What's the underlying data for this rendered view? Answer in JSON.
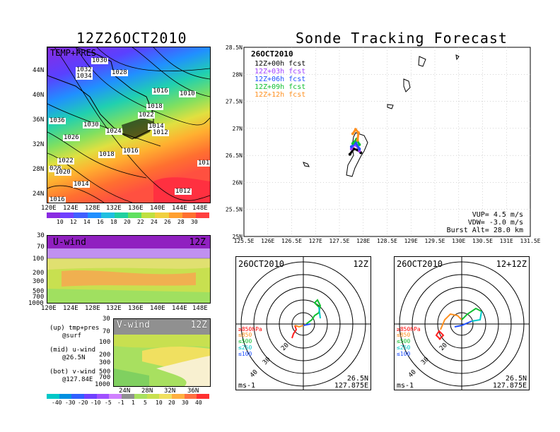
{
  "left": {
    "title": "12Z26OCT2010",
    "map_label": "TEMP+PRES",
    "lat_labels": [
      "44N",
      "40N",
      "36N",
      "32N",
      "28N",
      "24N"
    ],
    "lon_labels": [
      "120E",
      "124E",
      "128E",
      "132E",
      "136E",
      "140E",
      "144E",
      "148E"
    ],
    "isobars": [
      "1030",
      "1032",
      "1034",
      "1028",
      "1016",
      "1010",
      "1018",
      "1022",
      "1036",
      "1030",
      "1024",
      "1014",
      "1012",
      "1026",
      "1018",
      "1016",
      "028",
      "1022",
      "1020",
      "1014",
      "101",
      "1012",
      "1016"
    ],
    "temp_colorbar": [
      "10",
      "12",
      "14",
      "16",
      "18",
      "20",
      "22",
      "24",
      "26",
      "28",
      "30"
    ],
    "uwind": {
      "title": "U-wind",
      "time": "12Z",
      "p_labels": [
        "30",
        "70",
        "100",
        "200",
        "300",
        "500",
        "700",
        "1000"
      ],
      "lon_labels": [
        "120E",
        "124E",
        "128E",
        "132E",
        "136E",
        "140E",
        "144E",
        "148E"
      ]
    },
    "vwind": {
      "title": "V-wind",
      "time": "12Z",
      "p_labels": [
        "30",
        "70",
        "100",
        "200",
        "300",
        "500",
        "700",
        "1000"
      ],
      "lat_labels": [
        "24N",
        "28N",
        "32N",
        "36N"
      ]
    },
    "notes": [
      {
        "a": "(up) tmp+pres",
        "b": "@surf"
      },
      {
        "a": "(mid) u-wind",
        "b": "@26.5N"
      },
      {
        "a": "(bot) v-wind",
        "b": "@127.84E"
      }
    ],
    "wind_colorbar": [
      "-40",
      "-30",
      "-20",
      "-10",
      "-5",
      "-1",
      "1",
      "5",
      "10",
      "20",
      "30",
      "40"
    ]
  },
  "right": {
    "title": "Sonde Tracking Forecast",
    "date": "26OCT2010",
    "fcst_lines": [
      {
        "text": "12Z+00h  fcst",
        "color": "#000000"
      },
      {
        "text": "12Z+03h  fcst",
        "color": "#a040ff"
      },
      {
        "text": "12Z+06h  fcst",
        "color": "#2050ff"
      },
      {
        "text": "12Z+09h  fcst",
        "color": "#10c030"
      },
      {
        "text": "12Z+12h  fcst",
        "color": "#ff9020"
      }
    ],
    "info": [
      "VUP=  4.5  m/s",
      "VDW= -3.0  m/s",
      "Burst Alt=  28.0  km"
    ]
  },
  "hodo_left": {
    "date": "26OCT2010",
    "time": "12Z",
    "lat": "26.5N",
    "lon": "127.875E",
    "unit": "ms-1",
    "rings": [
      "20",
      "30",
      "40"
    ],
    "levels": [
      "≥850hPa",
      "≤850",
      "≤500",
      "≤250",
      "≤100"
    ]
  },
  "hodo_right": {
    "date": "26OCT2010",
    "time": "12+12Z",
    "lat": "26.5N",
    "lon": "127.875E",
    "unit": "ms-1",
    "rings": [
      "20",
      "30",
      "40"
    ],
    "levels": [
      "≥850hPa",
      "≤850",
      "≤500",
      "≤250",
      "≤100"
    ]
  },
  "chart_data": {
    "type": "line",
    "title": "Sonde Tracking Forecast",
    "x": {
      "label": "",
      "ticks": [
        "125.5E",
        "126E",
        "126.5E",
        "127E",
        "127.5E",
        "128E",
        "128.5E",
        "129E",
        "129.5E",
        "130E",
        "130.5E",
        "131E",
        "131.5E"
      ],
      "range": [
        125.5,
        131.5
      ]
    },
    "y": {
      "label": "",
      "ticks": [
        "25N",
        "25.5N",
        "26N",
        "26.5N",
        "27N",
        "27.5N",
        "28N",
        "28.5N"
      ],
      "range": [
        25,
        28.5
      ]
    },
    "grid": true,
    "series": [
      {
        "name": "12Z+00h fcst",
        "color": "#000000",
        "points": [
          [
            127.72,
            26.52
          ],
          [
            127.8,
            26.62
          ],
          [
            127.88,
            26.6
          ],
          [
            127.95,
            26.55
          ]
        ]
      },
      {
        "name": "12Z+03h fcst",
        "color": "#a040ff",
        "points": [
          [
            127.75,
            26.62
          ],
          [
            127.82,
            26.7
          ],
          [
            127.9,
            26.64
          ],
          [
            127.92,
            26.58
          ]
        ]
      },
      {
        "name": "12Z+06h fcst",
        "color": "#2050ff",
        "points": [
          [
            127.75,
            26.66
          ],
          [
            127.84,
            26.74
          ],
          [
            127.92,
            26.62
          ]
        ]
      },
      {
        "name": "12Z+09h fcst",
        "color": "#10c030",
        "points": [
          [
            127.78,
            26.72
          ],
          [
            127.86,
            26.8
          ],
          [
            127.92,
            26.7
          ]
        ]
      },
      {
        "name": "12Z+12h fcst",
        "color": "#ff9020",
        "points": [
          [
            127.78,
            26.9
          ],
          [
            127.84,
            26.98
          ],
          [
            127.9,
            26.92
          ],
          [
            127.88,
            26.78
          ]
        ]
      }
    ]
  }
}
